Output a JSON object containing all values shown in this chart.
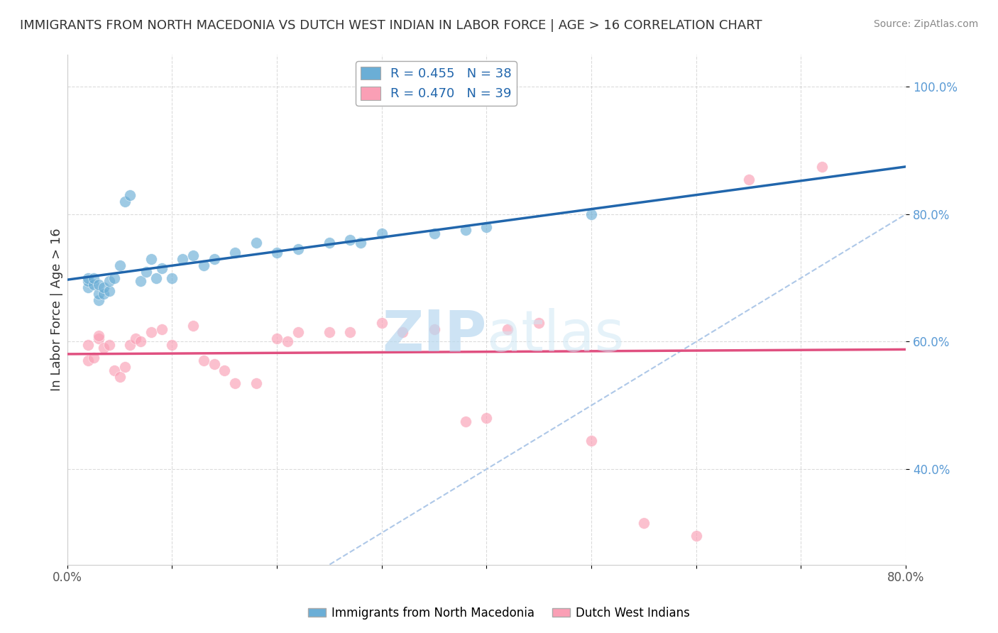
{
  "title": "IMMIGRANTS FROM NORTH MACEDONIA VS DUTCH WEST INDIAN IN LABOR FORCE | AGE > 16 CORRELATION CHART",
  "source": "Source: ZipAtlas.com",
  "ylabel": "In Labor Force | Age > 16",
  "legend_label1": "Immigrants from North Macedonia",
  "legend_label2": "Dutch West Indians",
  "R1": 0.455,
  "N1": 38,
  "R2": 0.47,
  "N2": 39,
  "color1": "#6baed6",
  "color2": "#fa9fb5",
  "trendline1_color": "#2166ac",
  "trendline2_color": "#e05080",
  "diagonal_color": "#aec8e8",
  "xlim": [
    0.0,
    0.8
  ],
  "ylim": [
    0.25,
    1.05
  ],
  "x_ticks": [
    0.0,
    0.1,
    0.2,
    0.3,
    0.4,
    0.5,
    0.6,
    0.7,
    0.8
  ],
  "y_ticks": [
    0.4,
    0.6,
    0.8,
    1.0
  ],
  "y_tick_labels": [
    "40.0%",
    "60.0%",
    "80.0%",
    "100.0%"
  ],
  "blue_x": [
    0.02,
    0.02,
    0.02,
    0.025,
    0.025,
    0.03,
    0.03,
    0.03,
    0.035,
    0.035,
    0.04,
    0.04,
    0.045,
    0.05,
    0.055,
    0.06,
    0.07,
    0.075,
    0.08,
    0.085,
    0.09,
    0.1,
    0.11,
    0.12,
    0.13,
    0.14,
    0.16,
    0.18,
    0.2,
    0.22,
    0.25,
    0.27,
    0.28,
    0.3,
    0.35,
    0.38,
    0.4,
    0.5
  ],
  "blue_y": [
    0.685,
    0.695,
    0.7,
    0.69,
    0.7,
    0.665,
    0.675,
    0.69,
    0.675,
    0.685,
    0.68,
    0.695,
    0.7,
    0.72,
    0.82,
    0.83,
    0.695,
    0.71,
    0.73,
    0.7,
    0.715,
    0.7,
    0.73,
    0.735,
    0.72,
    0.73,
    0.74,
    0.755,
    0.74,
    0.745,
    0.755,
    0.76,
    0.755,
    0.77,
    0.77,
    0.775,
    0.78,
    0.8
  ],
  "pink_x": [
    0.02,
    0.02,
    0.025,
    0.03,
    0.03,
    0.035,
    0.04,
    0.045,
    0.05,
    0.055,
    0.06,
    0.065,
    0.07,
    0.08,
    0.09,
    0.1,
    0.12,
    0.13,
    0.14,
    0.15,
    0.16,
    0.18,
    0.2,
    0.21,
    0.22,
    0.25,
    0.27,
    0.3,
    0.32,
    0.35,
    0.38,
    0.4,
    0.42,
    0.45,
    0.5,
    0.55,
    0.6,
    0.65,
    0.72
  ],
  "pink_y": [
    0.595,
    0.57,
    0.575,
    0.605,
    0.61,
    0.59,
    0.595,
    0.555,
    0.545,
    0.56,
    0.595,
    0.605,
    0.6,
    0.615,
    0.62,
    0.595,
    0.625,
    0.57,
    0.565,
    0.555,
    0.535,
    0.535,
    0.605,
    0.6,
    0.615,
    0.615,
    0.615,
    0.63,
    0.615,
    0.62,
    0.475,
    0.48,
    0.62,
    0.63,
    0.445,
    0.315,
    0.295,
    0.855,
    0.875
  ],
  "watermark_zip": "ZIP",
  "watermark_atlas": "atlas",
  "background_color": "#ffffff",
  "grid_color": "#cccccc"
}
